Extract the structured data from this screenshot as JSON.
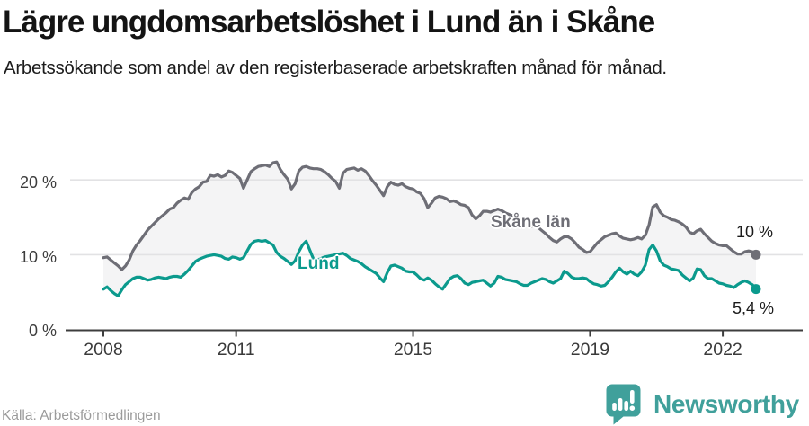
{
  "title": "Lägre ungdomsarbetslöshet i Lund än i Skåne",
  "subtitle": "Arbetssökande som andel av den registerbaserade arbetskraften månad för månad.",
  "source": "Källa: Arbetsförmedlingen",
  "logo": {
    "text": "Newsworthy",
    "color": "#40a09b"
  },
  "colors": {
    "skane_line": "#6e6e76",
    "lund_line": "#0b9a8d",
    "band_fill": "#f4f4f5",
    "gridline": "#e2e2e4",
    "axis": "#3d3d3d",
    "title_text": "#141414",
    "source_text": "#9b9b9b"
  },
  "chart_data": {
    "type": "line",
    "title": "Lägre ungdomsarbetslöshet i Lund än i Skåne",
    "subtitle": "Arbetssökande som andel av den registerbaserade arbetskraften månad för månad.",
    "unit": "%",
    "x_start": "2008-01",
    "x_end": "2022-10",
    "frequency": "monthly",
    "ylim": [
      0,
      24
    ],
    "grid": true,
    "legend_position": "inline-labels",
    "y_ticks": [
      {
        "label": "0 %",
        "value": 0
      },
      {
        "label": "10 %",
        "value": 10
      },
      {
        "label": "20 %",
        "value": 20
      }
    ],
    "x_ticks": [
      {
        "label": "2008",
        "year": 2008
      },
      {
        "label": "2011",
        "year": 2011
      },
      {
        "label": "2015",
        "year": 2015
      },
      {
        "label": "2019",
        "year": 2019
      },
      {
        "label": "2022",
        "year": 2022
      }
    ],
    "series": [
      {
        "name": "Skåne län",
        "color": "#6e6e76",
        "end_label": "10 %",
        "end_value": 10.0,
        "values": [
          9.6,
          9.7,
          9.3,
          8.9,
          8.5,
          8.0,
          8.5,
          9.3,
          10.5,
          11.3,
          11.9,
          12.6,
          13.3,
          13.8,
          14.3,
          14.8,
          15.2,
          15.6,
          16.1,
          16.3,
          16.9,
          17.3,
          17.6,
          17.4,
          18.3,
          18.8,
          19.1,
          19.7,
          19.8,
          20.6,
          20.5,
          20.7,
          20.4,
          20.6,
          21.2,
          21.0,
          20.6,
          20.2,
          18.9,
          20.0,
          21.1,
          21.5,
          21.8,
          21.9,
          22.0,
          21.8,
          22.3,
          22.4,
          21.4,
          20.7,
          20.1,
          18.8,
          19.5,
          21.2,
          21.7,
          21.8,
          21.6,
          21.5,
          21.5,
          21.4,
          21.1,
          20.7,
          20.2,
          19.8,
          18.9,
          20.9,
          21.4,
          21.5,
          21.6,
          21.3,
          21.5,
          21.2,
          20.6,
          19.9,
          19.3,
          18.6,
          17.9,
          19.1,
          19.7,
          19.4,
          19.3,
          19.5,
          19.1,
          18.9,
          18.8,
          18.4,
          18.2,
          17.5,
          16.3,
          16.9,
          17.6,
          17.8,
          17.7,
          17.5,
          17.1,
          17.2,
          17.0,
          16.7,
          16.6,
          16.3,
          15.3,
          14.8,
          15.2,
          15.8,
          15.8,
          15.7,
          15.9,
          16.1,
          15.9,
          15.6,
          15.4,
          15.2,
          15.0,
          14.7,
          14.3,
          13.9,
          13.8,
          13.9,
          13.6,
          13.2,
          12.8,
          12.3,
          11.9,
          11.7,
          12.1,
          12.4,
          12.4,
          12.1,
          11.6,
          11.0,
          10.7,
          10.3,
          10.4,
          11.0,
          11.6,
          12.0,
          12.4,
          12.6,
          12.8,
          12.9,
          12.5,
          12.2,
          12.1,
          12.0,
          12.1,
          12.3,
          12.1,
          12.6,
          14.0,
          16.4,
          16.7,
          15.7,
          15.2,
          15.0,
          14.7,
          14.6,
          14.4,
          14.1,
          13.7,
          13.0,
          12.8,
          13.2,
          13.4,
          12.8,
          12.3,
          11.8,
          11.5,
          11.3,
          11.2,
          11.2,
          10.8,
          10.4,
          10.1,
          10.1,
          10.4,
          10.5,
          10.4,
          10.0
        ]
      },
      {
        "name": "Lund",
        "color": "#0b9a8d",
        "end_label": "5,4 %",
        "end_value": 5.4,
        "values": [
          5.4,
          5.7,
          5.2,
          4.8,
          4.5,
          5.3,
          6.0,
          6.4,
          6.8,
          7.0,
          7.0,
          6.8,
          6.6,
          6.7,
          6.9,
          7.0,
          6.9,
          6.8,
          7.0,
          7.1,
          7.1,
          7.0,
          7.4,
          7.9,
          8.5,
          9.1,
          9.4,
          9.6,
          9.8,
          9.9,
          10.0,
          9.9,
          9.8,
          9.5,
          9.4,
          9.7,
          9.6,
          9.4,
          9.6,
          10.5,
          11.4,
          11.8,
          11.9,
          11.8,
          11.9,
          11.6,
          11.3,
          10.3,
          9.8,
          9.5,
          9.1,
          8.7,
          9.2,
          10.4,
          11.3,
          11.8,
          10.6,
          9.4,
          9.3,
          9.5,
          9.7,
          9.8,
          9.9,
          10.0,
          10.1,
          10.2,
          9.9,
          9.5,
          9.3,
          9.1,
          8.8,
          8.4,
          8.1,
          7.8,
          7.5,
          6.9,
          6.4,
          7.6,
          8.5,
          8.6,
          8.4,
          8.2,
          7.8,
          7.7,
          7.7,
          7.3,
          6.8,
          6.6,
          6.9,
          6.6,
          6.1,
          5.7,
          5.4,
          6.1,
          6.8,
          7.1,
          7.2,
          6.8,
          6.2,
          6.0,
          6.3,
          6.4,
          6.5,
          6.6,
          6.2,
          5.8,
          6.2,
          7.1,
          7.0,
          6.7,
          6.6,
          6.5,
          6.4,
          6.1,
          5.9,
          5.9,
          6.2,
          6.4,
          6.6,
          6.8,
          6.7,
          6.4,
          6.2,
          6.5,
          6.8,
          7.8,
          7.5,
          7.0,
          6.8,
          6.8,
          6.9,
          6.8,
          6.4,
          6.1,
          6.0,
          5.8,
          5.9,
          6.4,
          7.0,
          7.7,
          8.2,
          7.7,
          7.4,
          7.8,
          7.4,
          7.2,
          7.7,
          8.6,
          10.7,
          11.3,
          10.5,
          9.2,
          8.6,
          8.4,
          8.1,
          8.0,
          7.9,
          7.3,
          6.9,
          6.5,
          6.9,
          8.1,
          8.0,
          7.2,
          6.8,
          6.8,
          6.5,
          6.2,
          6.1,
          5.9,
          5.8,
          5.6,
          6.0,
          6.3,
          6.5,
          6.3,
          6.0,
          5.4
        ]
      }
    ]
  }
}
